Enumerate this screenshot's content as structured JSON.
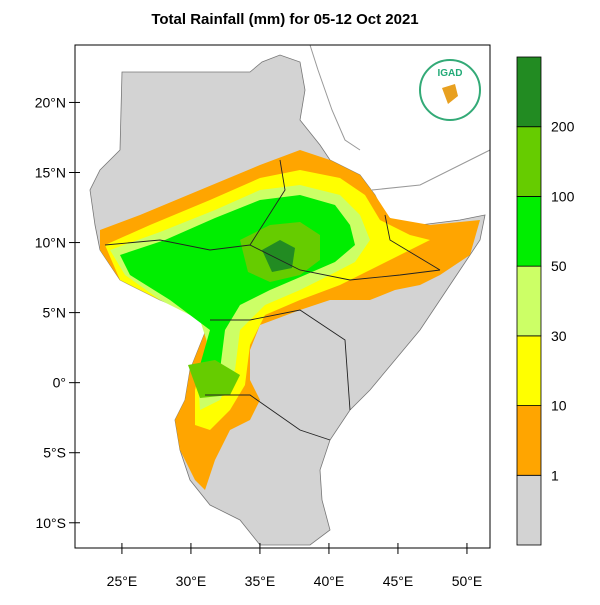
{
  "map": {
    "title": "Total Rainfall (mm) for 05-12 Oct 2021",
    "logo_text": "IGAD",
    "xlim": [
      21.6,
      51.67
    ],
    "ylim": [
      -11.8,
      24.1
    ],
    "xticks": [
      {
        "value": 25,
        "label": "25°E"
      },
      {
        "value": 30,
        "label": "30°E"
      },
      {
        "value": 35,
        "label": "35°E"
      },
      {
        "value": 40,
        "label": "40°E"
      },
      {
        "value": 45,
        "label": "45°E"
      },
      {
        "value": 50,
        "label": "50°E"
      }
    ],
    "yticks": [
      {
        "value": 20,
        "label": "20°N"
      },
      {
        "value": 15,
        "label": "15°N"
      },
      {
        "value": 10,
        "label": "10°N"
      },
      {
        "value": 5,
        "label": "5°N"
      },
      {
        "value": 0,
        "label": "0°"
      },
      {
        "value": -5,
        "label": "5°S"
      },
      {
        "value": -10,
        "label": "10°S"
      }
    ]
  },
  "colorbar": {
    "levels": [
      1,
      10,
      30,
      50,
      100,
      200
    ],
    "colors": [
      "#d3d3d3",
      "#ffa500",
      "#ffff00",
      "#ccff66",
      "#00ee00",
      "#66cc00",
      "#228b22"
    ]
  }
}
